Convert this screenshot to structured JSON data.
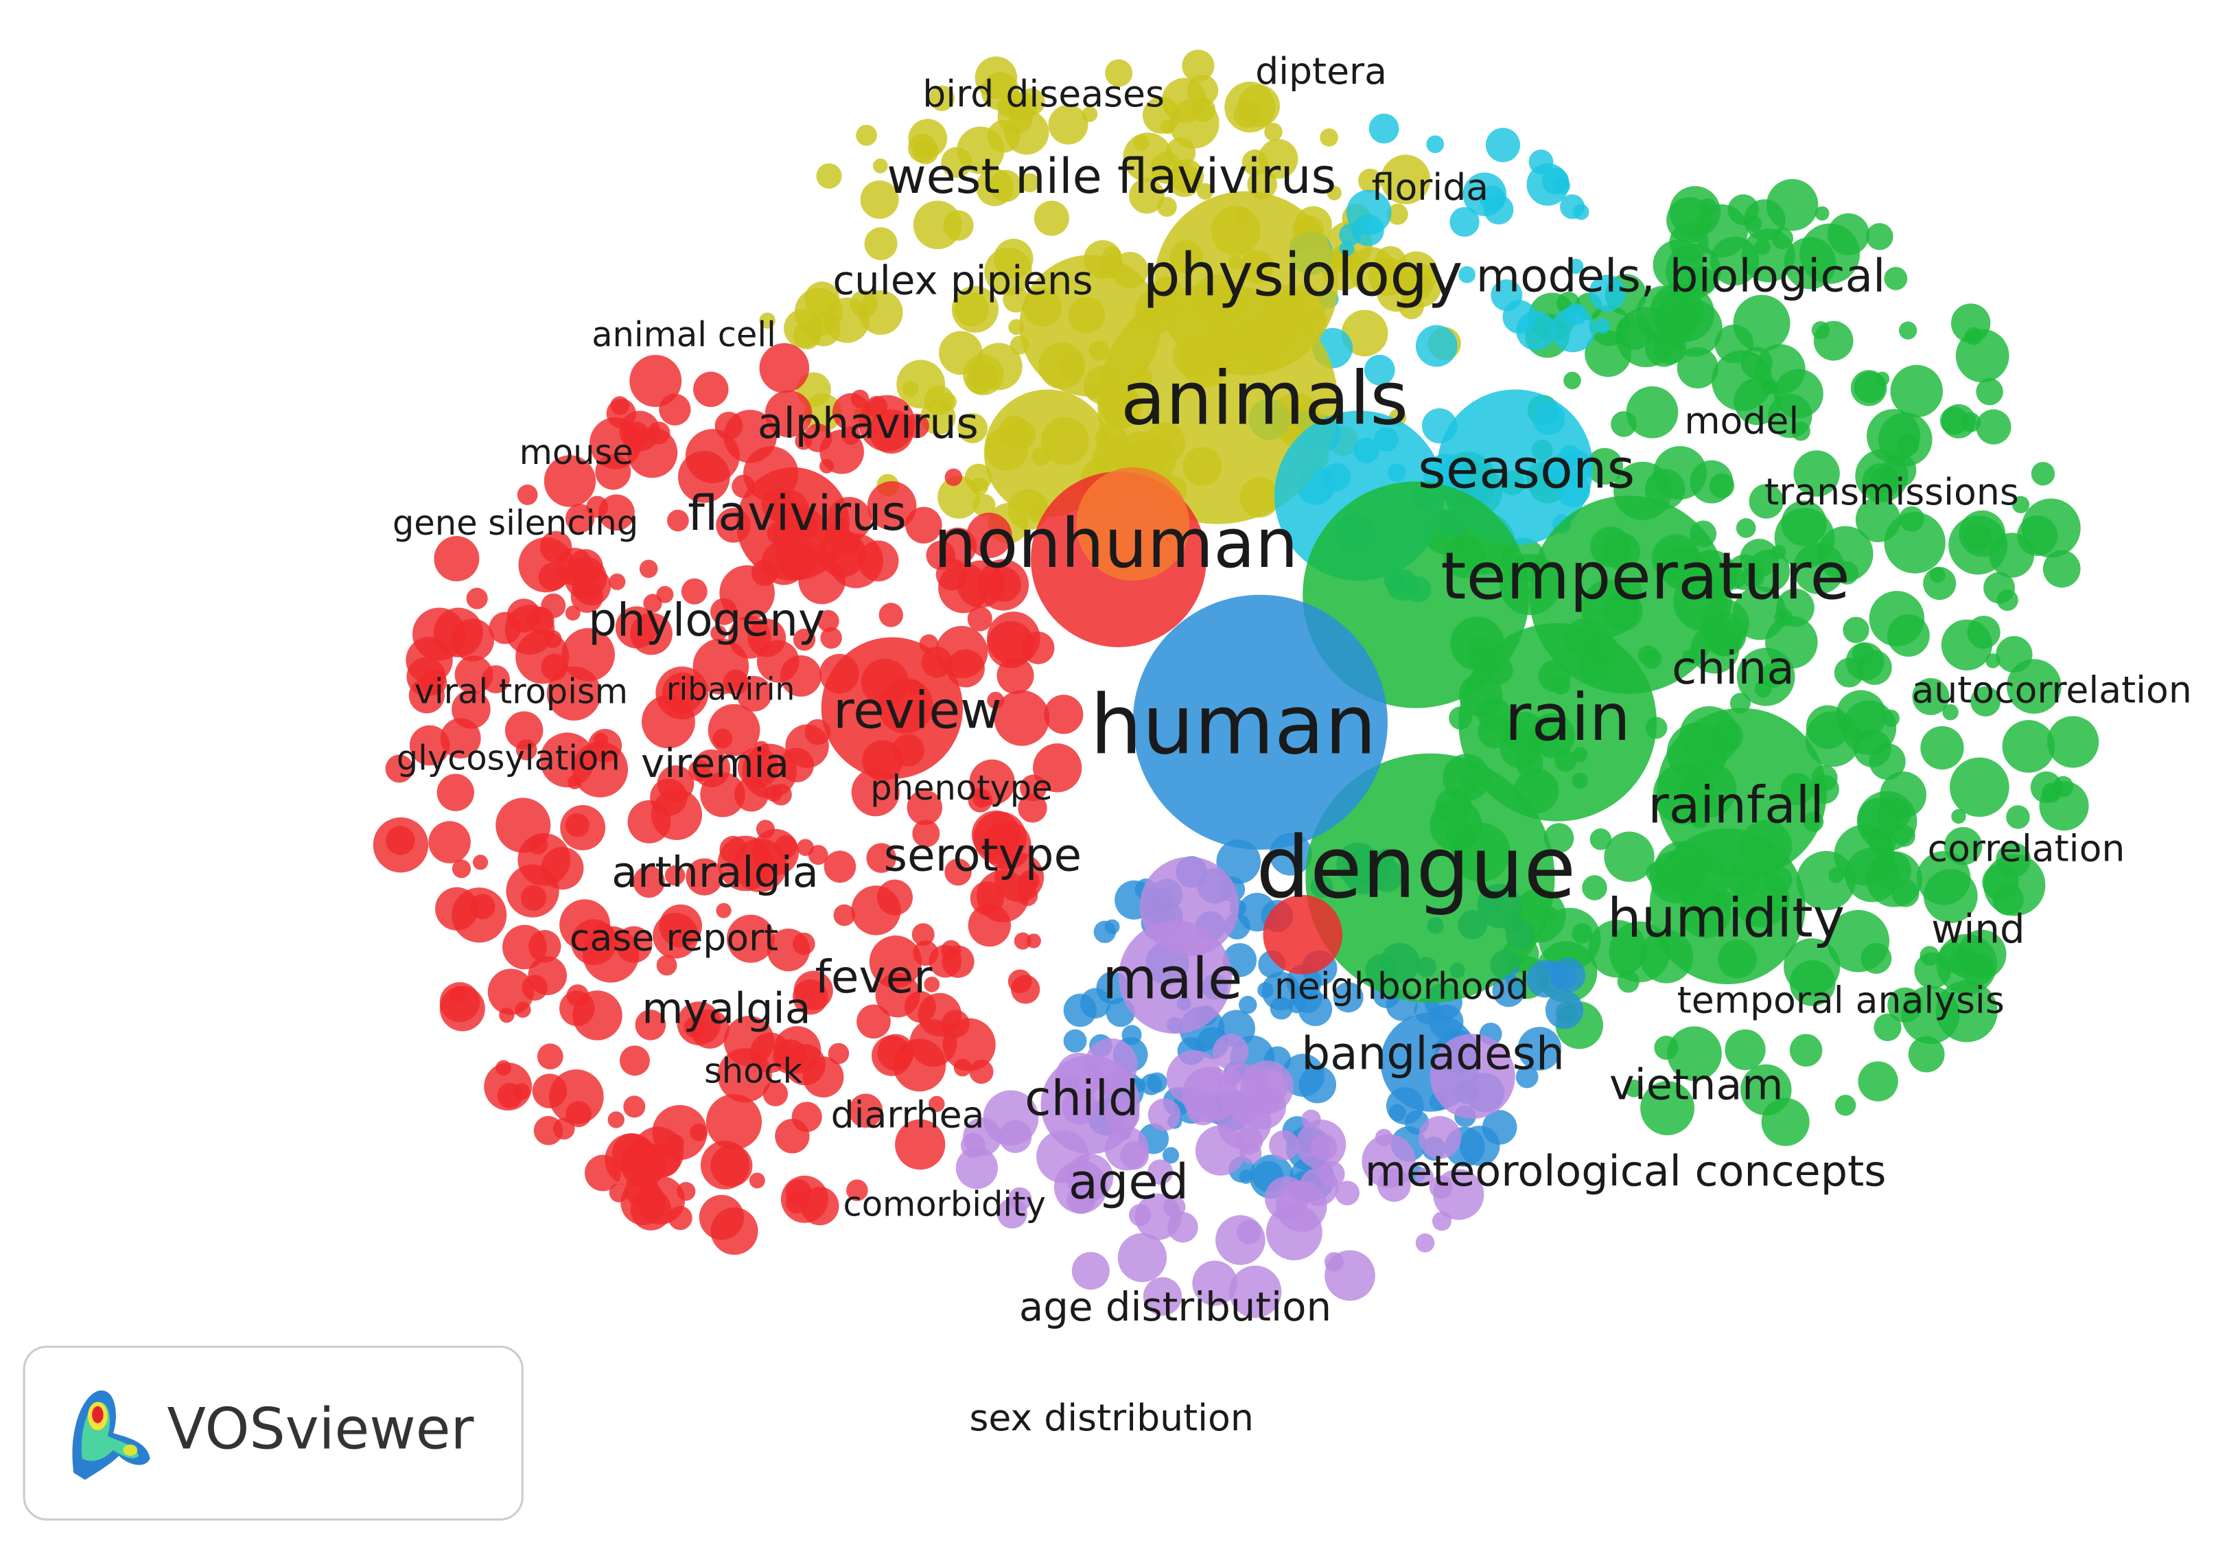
{
  "nodes": [
    {
      "label": "bird diseases"
    },
    {
      "label": "diptera"
    },
    {
      "label": "west nile flavivirus"
    },
    {
      "label": "florida"
    },
    {
      "label": "culex pipiens"
    },
    {
      "label": "physiology"
    },
    {
      "label": "models, biological"
    },
    {
      "label": "animal cell"
    },
    {
      "label": "animals"
    },
    {
      "label": "alphavirus"
    },
    {
      "label": "model"
    },
    {
      "label": "mouse"
    },
    {
      "label": "seasons"
    },
    {
      "label": "transmissions"
    },
    {
      "label": "gene silencing"
    },
    {
      "label": "flavivirus"
    },
    {
      "label": "nonhuman"
    },
    {
      "label": "temperature"
    },
    {
      "label": "phylogeny"
    },
    {
      "label": "viral tropism"
    },
    {
      "label": "ribavirin"
    },
    {
      "label": "china"
    },
    {
      "label": "autocorrelation"
    },
    {
      "label": "review"
    },
    {
      "label": "human"
    },
    {
      "label": "rain"
    },
    {
      "label": "glycosylation"
    },
    {
      "label": "viremia"
    },
    {
      "label": "phenotype"
    },
    {
      "label": "rainfall"
    },
    {
      "label": "correlation"
    },
    {
      "label": "arthralgia"
    },
    {
      "label": "serotype"
    },
    {
      "label": "dengue"
    },
    {
      "label": "humidity"
    },
    {
      "label": "wind"
    },
    {
      "label": "case report"
    },
    {
      "label": "fever"
    },
    {
      "label": "male"
    },
    {
      "label": "neighborhood"
    },
    {
      "label": "temporal analysis"
    },
    {
      "label": "myalgia"
    },
    {
      "label": "shock"
    },
    {
      "label": "bangladesh"
    },
    {
      "label": "vietnam"
    },
    {
      "label": "child"
    },
    {
      "label": "diarrhea"
    },
    {
      "label": "aged"
    },
    {
      "label": "meteorological concepts"
    },
    {
      "label": "comorbidity"
    },
    {
      "label": "age distribution"
    },
    {
      "label": "sex distribution"
    }
  ],
  "logo": {
    "text": "VOSviewer"
  }
}
